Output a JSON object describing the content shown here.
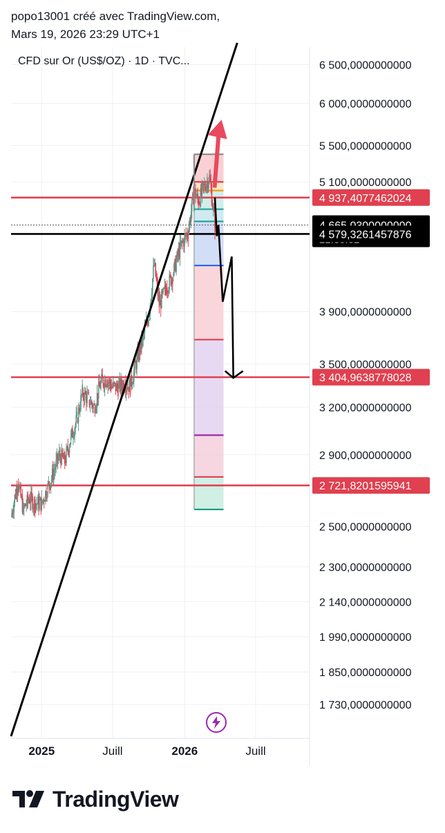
{
  "header": {
    "line1": "popo13001 créé avec TradingView.com,",
    "line2": "Mars 19, 2026 23:29 UTC+1"
  },
  "symbol_label": "CFD sur Or (US$/OZ) · 1D · TVC...",
  "brand": "TradingView",
  "colors": {
    "red_line": "#e0404f",
    "black_label": "#000000",
    "candle_up": "#5b9a8b",
    "candle_down": "#e0404f",
    "arrow_red": "#e84a5f",
    "icon_purple": "#9c27b0"
  },
  "icons": {
    "flash": "lightning-bolt-icon"
  },
  "chart_data": {
    "type": "line",
    "title": "CFD sur Or (US$/OZ) · 1D · TVC...",
    "y_scale": "log",
    "x_tick_labels": [
      "2025",
      "Juill",
      "2026",
      "Juill"
    ],
    "y_tick_labels": [
      "6 500,0000000000",
      "6 000,0000000000",
      "5 500,0000000000",
      "5 100,0000000000",
      "3 900,0000000000",
      "3 500,0000000000",
      "3 200,0000000000",
      "2 900,0000000000",
      "2 500,0000000000",
      "2 300,0000000000",
      "2 140,0000000000",
      "1 990,0000000000",
      "1 850,0000000000",
      "1 730,0000000000"
    ],
    "y_ticks": [
      6500,
      6000,
      5500,
      5100,
      3900,
      3500,
      3200,
      2900,
      2500,
      2300,
      2140,
      1990,
      1850,
      1730
    ],
    "ylim": [
      1620,
      6800
    ],
    "price_labels": [
      {
        "text": "4 937,4077462024",
        "value": 4937.41,
        "style": "red"
      },
      {
        "text": "4 665,0300000000",
        "value": 4665.03,
        "style": "black",
        "sub": "22:30:32"
      },
      {
        "text": "4 579,3261457876",
        "value": 4579.33,
        "style": "black"
      },
      {
        "text": "3 404,9638778028",
        "value": 3404.96,
        "style": "red"
      },
      {
        "text": "2 721,8201595941",
        "value": 2721.82,
        "style": "red"
      }
    ],
    "horizontal_lines": [
      {
        "value": 4937.41,
        "color": "#e0404f"
      },
      {
        "value": 4579.33,
        "color": "#000000"
      },
      {
        "value": 3404.96,
        "color": "#e0404f"
      },
      {
        "value": 2721.82,
        "color": "#e0404f"
      }
    ],
    "fib_levels": [
      {
        "value": 5400,
        "color": "#8a8a8a"
      },
      {
        "value": 5100,
        "color": "#e0404f"
      },
      {
        "value": 5010,
        "color": "#f39c12"
      },
      {
        "value": 4820,
        "color": "#26a69a"
      },
      {
        "value": 4700,
        "color": "#26a69a"
      },
      {
        "value": 4290,
        "color": "#2962ff"
      },
      {
        "value": 3680,
        "color": "#e0404f"
      },
      {
        "value": 3020,
        "color": "#9c27b0"
      },
      {
        "value": 2770,
        "color": "#e0404f"
      },
      {
        "value": 2590,
        "color": "#089981"
      }
    ],
    "price_series": [
      {
        "date": "2024-10-15",
        "close": 2550
      },
      {
        "date": "2024-11-01",
        "close": 2740
      },
      {
        "date": "2024-11-15",
        "close": 2590
      },
      {
        "date": "2024-12-01",
        "close": 2650
      },
      {
        "date": "2024-12-15",
        "close": 2620
      },
      {
        "date": "2025-01-01",
        "close": 2625
      },
      {
        "date": "2025-01-15",
        "close": 2700
      },
      {
        "date": "2025-02-01",
        "close": 2800
      },
      {
        "date": "2025-02-15",
        "close": 2900
      },
      {
        "date": "2025-03-01",
        "close": 2860
      },
      {
        "date": "2025-03-15",
        "close": 2990
      },
      {
        "date": "2025-04-01",
        "close": 3120
      },
      {
        "date": "2025-04-15",
        "close": 3300
      },
      {
        "date": "2025-05-01",
        "close": 3250
      },
      {
        "date": "2025-05-15",
        "close": 3200
      },
      {
        "date": "2025-06-01",
        "close": 3370
      },
      {
        "date": "2025-06-15",
        "close": 3390
      },
      {
        "date": "2025-07-01",
        "close": 3340
      },
      {
        "date": "2025-07-15",
        "close": 3330
      },
      {
        "date": "2025-08-01",
        "close": 3360
      },
      {
        "date": "2025-08-15",
        "close": 3340
      },
      {
        "date": "2025-09-01",
        "close": 3530
      },
      {
        "date": "2025-09-15",
        "close": 3680
      },
      {
        "date": "2025-10-01",
        "close": 3860
      },
      {
        "date": "2025-10-15",
        "close": 4300
      },
      {
        "date": "2025-10-28",
        "close": 3950
      },
      {
        "date": "2025-11-15",
        "close": 4100
      },
      {
        "date": "2025-12-01",
        "close": 4200
      },
      {
        "date": "2025-12-20",
        "close": 4450
      },
      {
        "date": "2026-01-10",
        "close": 4600
      },
      {
        "date": "2026-01-25",
        "close": 5000
      },
      {
        "date": "2026-02-05",
        "close": 4900
      },
      {
        "date": "2026-02-20",
        "close": 5050
      },
      {
        "date": "2026-03-05",
        "close": 5150
      },
      {
        "date": "2026-03-19",
        "close": 4665
      }
    ],
    "projection_path": [
      {
        "date": "2026-03-19",
        "value": 4937
      },
      {
        "date": "2026-03-24",
        "value": 4560
      },
      {
        "date": "2026-03-28",
        "value": 4665
      },
      {
        "date": "2026-04-08",
        "value": 3980
      },
      {
        "date": "2026-05-01",
        "value": 4370
      },
      {
        "date": "2026-05-05",
        "value": 3400
      }
    ],
    "upside_arrow": {
      "from_date": "2026-03-18",
      "from_value": 5040,
      "to_date": "2026-04-05",
      "to_value": 5800
    },
    "trendline": {
      "from_date": "2024-10-15",
      "from_value": 1620,
      "to_date": "2026-05-15",
      "to_value": 6800
    }
  }
}
